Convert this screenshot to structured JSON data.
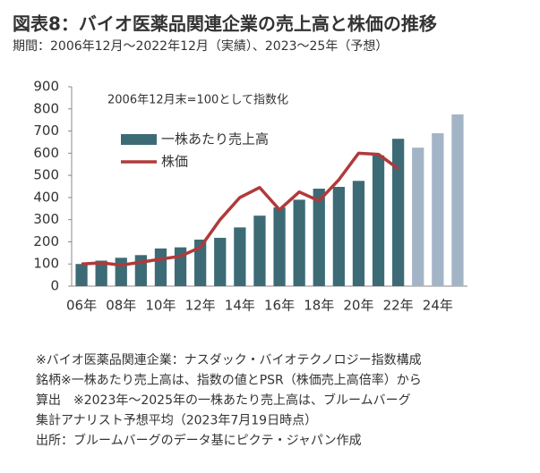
{
  "chart_data": {
    "type": "bar",
    "title": "図表8：バイオ医薬品関連企業の売上高と株価の推移",
    "subtitle": "期間：2006年12月～2022年12月（実績）、2023～25年（予想）",
    "annotation": "2006年12月末=100として指数化",
    "categories": [
      "06年",
      null,
      "08年",
      null,
      "10年",
      null,
      "12年",
      null,
      "14年",
      null,
      "16年",
      null,
      "18年",
      null,
      "20年",
      null,
      "22年",
      null,
      "24年",
      null
    ],
    "series": [
      {
        "name": "一株あたり売上高",
        "type": "bar",
        "color": "#3d6b75",
        "colors": [
          "#3d6b75",
          "#3d6b75",
          "#3d6b75",
          "#3d6b75",
          "#3d6b75",
          "#3d6b75",
          "#3d6b75",
          "#3d6b75",
          "#3d6b75",
          "#3d6b75",
          "#3d6b75",
          "#3d6b75",
          "#3d6b75",
          "#3d6b75",
          "#3d6b75",
          "#3d6b75",
          "#3d6b75",
          "#a3b4c7",
          "#a3b4c7",
          "#a3b4c7"
        ],
        "values": [
          100,
          115,
          128,
          140,
          170,
          175,
          210,
          218,
          265,
          318,
          355,
          390,
          440,
          448,
          475,
          590,
          665,
          625,
          690,
          775
        ]
      },
      {
        "name": "株価",
        "type": "line",
        "color": "#b03a3a",
        "values": [
          100,
          105,
          95,
          108,
          122,
          135,
          175,
          300,
          400,
          445,
          345,
          425,
          385,
          480,
          600,
          595,
          530,
          null,
          null,
          null
        ]
      }
    ],
    "ylim": [
      0,
      900
    ],
    "yticks": [
      0,
      100,
      200,
      300,
      400,
      500,
      600,
      700,
      800,
      900
    ],
    "notes": [
      "※バイオ医薬品関連企業：ナスダック・バイオテクノロジー指数構成",
      "銘柄※一株あたり売上高は、指数の値とPSR（株価売上高倍率）から",
      "算出　※2023年～2025年の一株あたり売上高は、ブルームバーグ",
      "集計アナリスト予想平均（2023年7月19日時点）",
      "出所：ブルームバーグのデータ基にピクテ・ジャパン作成"
    ]
  }
}
